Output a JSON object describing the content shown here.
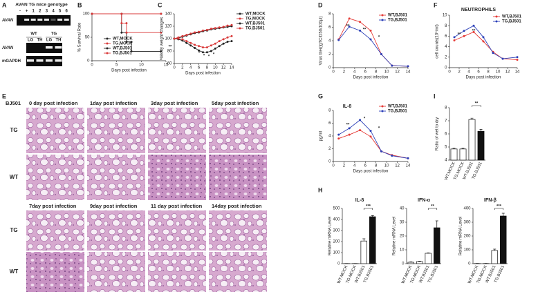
{
  "panels": [
    "A",
    "B",
    "C",
    "D",
    "E",
    "F",
    "G",
    "H",
    "I"
  ],
  "gel": {
    "title": "AVAN TG mice genotype",
    "lanes": [
      "-",
      "+",
      "1",
      "2",
      "3",
      "4",
      "5",
      "6"
    ],
    "row": "AVAN",
    "groups": [
      "WT",
      "TG"
    ],
    "tissues": [
      "LG",
      "TH",
      "LG",
      "TH"
    ],
    "rows": [
      "AVAN",
      "mGAPDH"
    ]
  },
  "histology": {
    "label": "BJ501",
    "columns": [
      "0 day post infection",
      "1day post infection",
      "3day post infection",
      "5day post infection",
      "7day post infection",
      "9day post infection",
      "11 day post infection",
      "14day post infection"
    ],
    "rows": [
      "TG",
      "WT",
      "TG",
      "WT"
    ]
  },
  "chart_data": [
    {
      "type": "line",
      "x_label": "Days post infection",
      "y_label": "% Survival Rate",
      "xlim": [
        0,
        15
      ],
      "xticks": [
        0,
        5,
        10,
        15
      ],
      "ylim": [
        0,
        100
      ],
      "yticks": [
        0,
        50,
        100
      ],
      "series": [
        {
          "name": "WT,MOCK",
          "color": "#222222",
          "x": [
            0,
            14
          ],
          "values": [
            100,
            100
          ]
        },
        {
          "name": "TG,MOCK",
          "color": "#d93a3a",
          "x": [
            0,
            14
          ],
          "values": [
            100,
            100
          ]
        },
        {
          "name": "WT,BJ501",
          "color": "#222222",
          "x": [
            0,
            6,
            6,
            7,
            7,
            8,
            8,
            14
          ],
          "values": [
            100,
            100,
            60,
            60,
            40,
            40,
            20,
            20
          ]
        },
        {
          "name": "TG,BJ501",
          "color": "#d93a3a",
          "x": [
            0,
            6,
            6,
            7,
            7,
            14
          ],
          "values": [
            100,
            100,
            80,
            80,
            60,
            60
          ]
        }
      ],
      "annotations": [
        "**"
      ]
    },
    {
      "type": "line",
      "x_label": "Days post infection",
      "y_label": "%Body weight changes",
      "xlim": [
        0,
        14
      ],
      "xticks": [
        0,
        2,
        4,
        6,
        8,
        10,
        12,
        14
      ],
      "ylim": [
        60,
        140
      ],
      "yticks": [
        60,
        80,
        100,
        120,
        140
      ],
      "series": [
        {
          "name": "WT,MOCK",
          "color": "#222222",
          "x": [
            0,
            1,
            2,
            3,
            4,
            5,
            6,
            7,
            8,
            9,
            10,
            11,
            12,
            13,
            14
          ],
          "values": [
            100,
            101,
            103,
            105,
            107,
            109,
            110,
            112,
            113,
            115,
            116,
            117,
            118,
            119,
            120
          ]
        },
        {
          "name": "TG,MOCK",
          "color": "#d93a3a",
          "x": [
            0,
            1,
            2,
            3,
            4,
            5,
            6,
            7,
            8,
            9,
            10,
            11,
            12,
            13,
            14
          ],
          "values": [
            100,
            102,
            104,
            106,
            108,
            110,
            111,
            113,
            114,
            116,
            117,
            118,
            119,
            121,
            122
          ]
        },
        {
          "name": "WT,BJ501",
          "color": "#222222",
          "x": [
            0,
            1,
            2,
            3,
            4,
            5,
            6,
            7,
            8,
            9,
            10,
            11,
            12,
            13,
            14
          ],
          "values": [
            100,
            99,
            97,
            93,
            89,
            85,
            81,
            78,
            78,
            80,
            84,
            88,
            92,
            95,
            96
          ]
        },
        {
          "name": "TG,BJ501",
          "color": "#d93a3a",
          "x": [
            0,
            1,
            2,
            3,
            4,
            5,
            6,
            7,
            8,
            9,
            10,
            11,
            12,
            13,
            14
          ],
          "values": [
            100,
            100,
            99,
            96,
            93,
            90,
            88,
            86,
            86,
            89,
            92,
            96,
            99,
            102,
            104
          ]
        }
      ],
      "annotations": [
        "*",
        "*",
        "*",
        "*"
      ]
    },
    {
      "type": "line",
      "x_label": "Days post infection",
      "y_label": "Virus titer(lgTCID50/100μl)",
      "xlim": [
        0,
        14
      ],
      "xticks": [
        0,
        2,
        4,
        6,
        8,
        10,
        12,
        14
      ],
      "ylim": [
        0,
        8
      ],
      "yticks": [
        0,
        2,
        4,
        6,
        8
      ],
      "series": [
        {
          "name": "WT,BJ501",
          "color": "#e53935",
          "x": [
            1,
            3,
            5,
            7,
            9,
            11,
            14
          ],
          "values": [
            4.2,
            7.3,
            6.8,
            5.5,
            2,
            0.3,
            0.2
          ]
        },
        {
          "name": "TG,BJ501",
          "color": "#2b3fb8",
          "x": [
            1,
            3,
            5,
            7,
            9,
            11,
            14
          ],
          "values": [
            4.1,
            6.1,
            5.5,
            4.2,
            2,
            0.3,
            0.2
          ]
        }
      ],
      "annotations": [
        "**",
        "**",
        "*"
      ]
    },
    {
      "type": "line",
      "title": "NEUTROPHILS",
      "x_label": "Days post infection",
      "y_label": "cell counts(10⁶/ml)",
      "xlim": [
        0,
        14
      ],
      "xticks": [
        0,
        2,
        4,
        6,
        8,
        10,
        12,
        14
      ],
      "ylim": [
        0,
        10
      ],
      "yticks": [
        0,
        2,
        4,
        6,
        8,
        10
      ],
      "series": [
        {
          "name": "WT,BJ501",
          "color": "#e53935",
          "x": [
            1,
            3,
            5,
            7,
            9,
            11,
            14
          ],
          "values": [
            5.2,
            6,
            6.8,
            5,
            3,
            1.7,
            1.5
          ]
        },
        {
          "name": "TG,BJ501",
          "color": "#2b3fb8",
          "x": [
            1,
            3,
            5,
            7,
            9,
            11,
            14
          ],
          "values": [
            5.8,
            7,
            8,
            5.8,
            2.8,
            1.7,
            2
          ]
        }
      ],
      "annotations": [
        "**",
        "**"
      ]
    },
    {
      "type": "line",
      "title": "IL-8",
      "x_label": "Days post infection",
      "y_label": "pg/ml",
      "xlim": [
        0,
        14
      ],
      "xticks": [
        0,
        2,
        4,
        6,
        8,
        10,
        12,
        14
      ],
      "ylim": [
        0,
        8
      ],
      "yticks": [
        0,
        2,
        4,
        6,
        8
      ],
      "series": [
        {
          "name": "WT,BJ501",
          "color": "#e53935",
          "x": [
            1,
            3,
            5,
            7,
            9,
            11,
            14
          ],
          "values": [
            3.6,
            4.2,
            4.9,
            3.9,
            1.6,
            1,
            0.5
          ]
        },
        {
          "name": "TG,BJ501",
          "color": "#2b3fb8",
          "x": [
            1,
            3,
            5,
            7,
            9,
            11,
            14
          ],
          "values": [
            4.2,
            5.2,
            6.5,
            4.8,
            1.6,
            0.9,
            0.5
          ]
        }
      ],
      "annotations": [
        "**",
        "*",
        "*"
      ]
    },
    {
      "type": "bar",
      "y_label": "Ratio of wet to dry",
      "categories": [
        "WT.MOCK",
        "TG.MOCK",
        "WT.BJ501",
        "TG.BJ501"
      ],
      "values": [
        4.85,
        4.85,
        7.1,
        6.2
      ],
      "errors": [
        0.05,
        0.05,
        0.1,
        0.15
      ],
      "colors": [
        "#ffffff",
        "#ffffff",
        "#ffffff",
        "#111111"
      ],
      "ylim": [
        4,
        8
      ],
      "yticks": [
        4,
        5,
        6,
        7,
        8
      ],
      "annotations": [
        "**"
      ]
    },
    {
      "type": "bar",
      "title": "IL-8",
      "y_label": "Relative mRNA Level",
      "categories": [
        "WT.MOCK",
        "TG.MOCK",
        "WT.BJ501",
        "TG.BJ501"
      ],
      "values": [
        1,
        1,
        205,
        425
      ],
      "errors": [
        1,
        1,
        20,
        10
      ],
      "colors": [
        "#ffffff",
        "#ffffff",
        "#ffffff",
        "#111111"
      ],
      "ylim": [
        0,
        500
      ],
      "yticks": [
        0,
        100,
        200,
        300,
        400,
        500
      ],
      "annotations": [
        "***"
      ]
    },
    {
      "type": "bar",
      "title": "IFN-α",
      "y_label": "Relative mRNA Level",
      "categories": [
        "WT.MOCK",
        "TG.MOCK",
        "WT.BJ501",
        "TG.BJ501"
      ],
      "values": [
        1,
        1.5,
        7.5,
        26
      ],
      "errors": [
        0.3,
        0.3,
        0.3,
        5
      ],
      "colors": [
        "#ffffff",
        "#ffffff",
        "#ffffff",
        "#111111"
      ],
      "ylim": [
        0,
        40
      ],
      "yticks": [
        0,
        10,
        20,
        30,
        40
      ],
      "annotations": [
        "**"
      ]
    },
    {
      "type": "bar",
      "title": "IFN-β",
      "y_label": "Relative mRNA Level",
      "categories": [
        "WT.MOCK",
        "TG.MOCK",
        "WT.BJ501",
        "TG.BJ501"
      ],
      "values": [
        1,
        1,
        95,
        345
      ],
      "errors": [
        1,
        1,
        10,
        20
      ],
      "colors": [
        "#ffffff",
        "#ffffff",
        "#ffffff",
        "#111111"
      ],
      "ylim": [
        0,
        400
      ],
      "yticks": [
        0,
        100,
        200,
        300,
        400
      ],
      "annotations": [
        "***"
      ]
    }
  ]
}
